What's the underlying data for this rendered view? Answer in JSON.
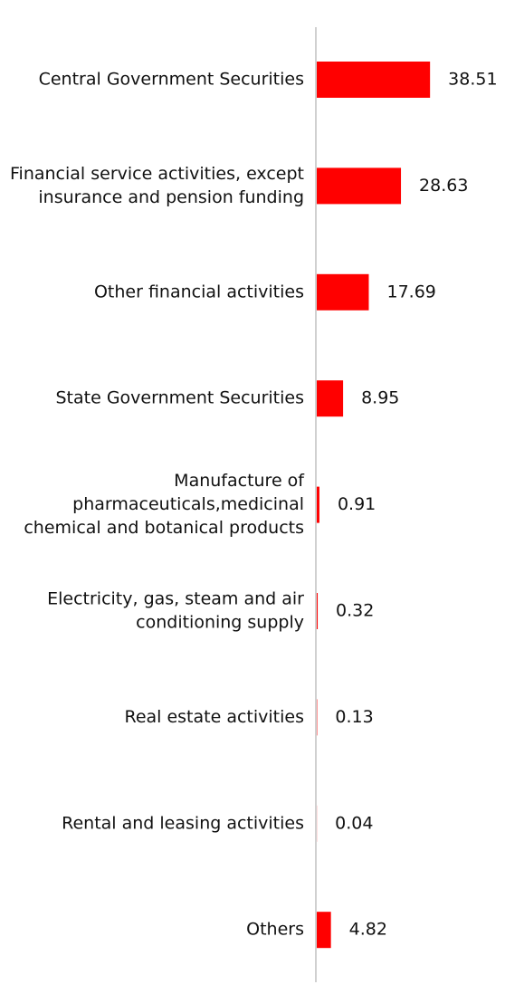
{
  "chart_data": {
    "type": "bar",
    "orientation": "horizontal",
    "title": "",
    "xlabel": "",
    "ylabel": "",
    "grid": false,
    "legend": "none",
    "bar_color": "#ff0000",
    "axis_color": "#d0d0d0",
    "categories": [
      [
        "Central Government Securities"
      ],
      [
        "Financial service activities, except",
        "insurance and pension funding"
      ],
      [
        "Other financial activities"
      ],
      [
        "State Government Securities"
      ],
      [
        "Manufacture of",
        "pharmaceuticals,medicinal",
        "chemical and botanical products"
      ],
      [
        "Electricity, gas, steam and air",
        "conditioning supply"
      ],
      [
        "Real estate activities"
      ],
      [
        "Rental and leasing activities"
      ],
      [
        "Others"
      ]
    ],
    "values": [
      38.51,
      28.63,
      17.69,
      8.95,
      0.91,
      0.32,
      0.13,
      0.04,
      4.82
    ],
    "value_labels": [
      "38.51",
      "28.63",
      "17.69",
      "8.95",
      "0.91",
      "0.32",
      "0.13",
      "0.04",
      "4.82"
    ],
    "xlim": [
      0,
      40
    ]
  }
}
